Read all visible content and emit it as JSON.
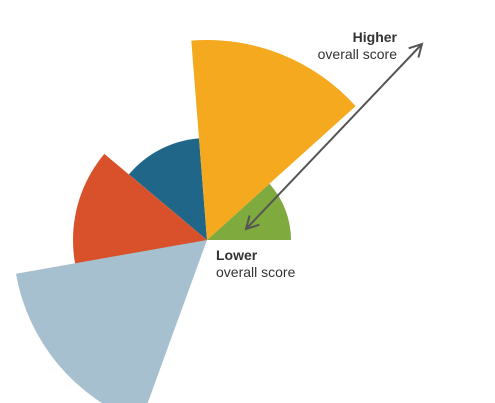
{
  "diagram": {
    "center": "pivot",
    "segments": [
      {
        "name": "yellow-segment",
        "color": "#F5A91F",
        "score": 1.0
      },
      {
        "name": "green-segment",
        "color": "#7EAA3E",
        "score": 0.42
      },
      {
        "name": "blue-segment",
        "color": "#1F6688",
        "score": 0.51
      },
      {
        "name": "orange-segment",
        "color": "#D9512B",
        "score": 0.67
      },
      {
        "name": "light-blue-segment",
        "color": "#A7C0D0",
        "score": 0.97
      }
    ],
    "arrow": {
      "color": "#555555",
      "direction": "bidirectional"
    },
    "higher": {
      "title": "Higher",
      "subtitle": "overall score"
    },
    "lower": {
      "title": "Lower",
      "subtitle": "overall score"
    }
  }
}
